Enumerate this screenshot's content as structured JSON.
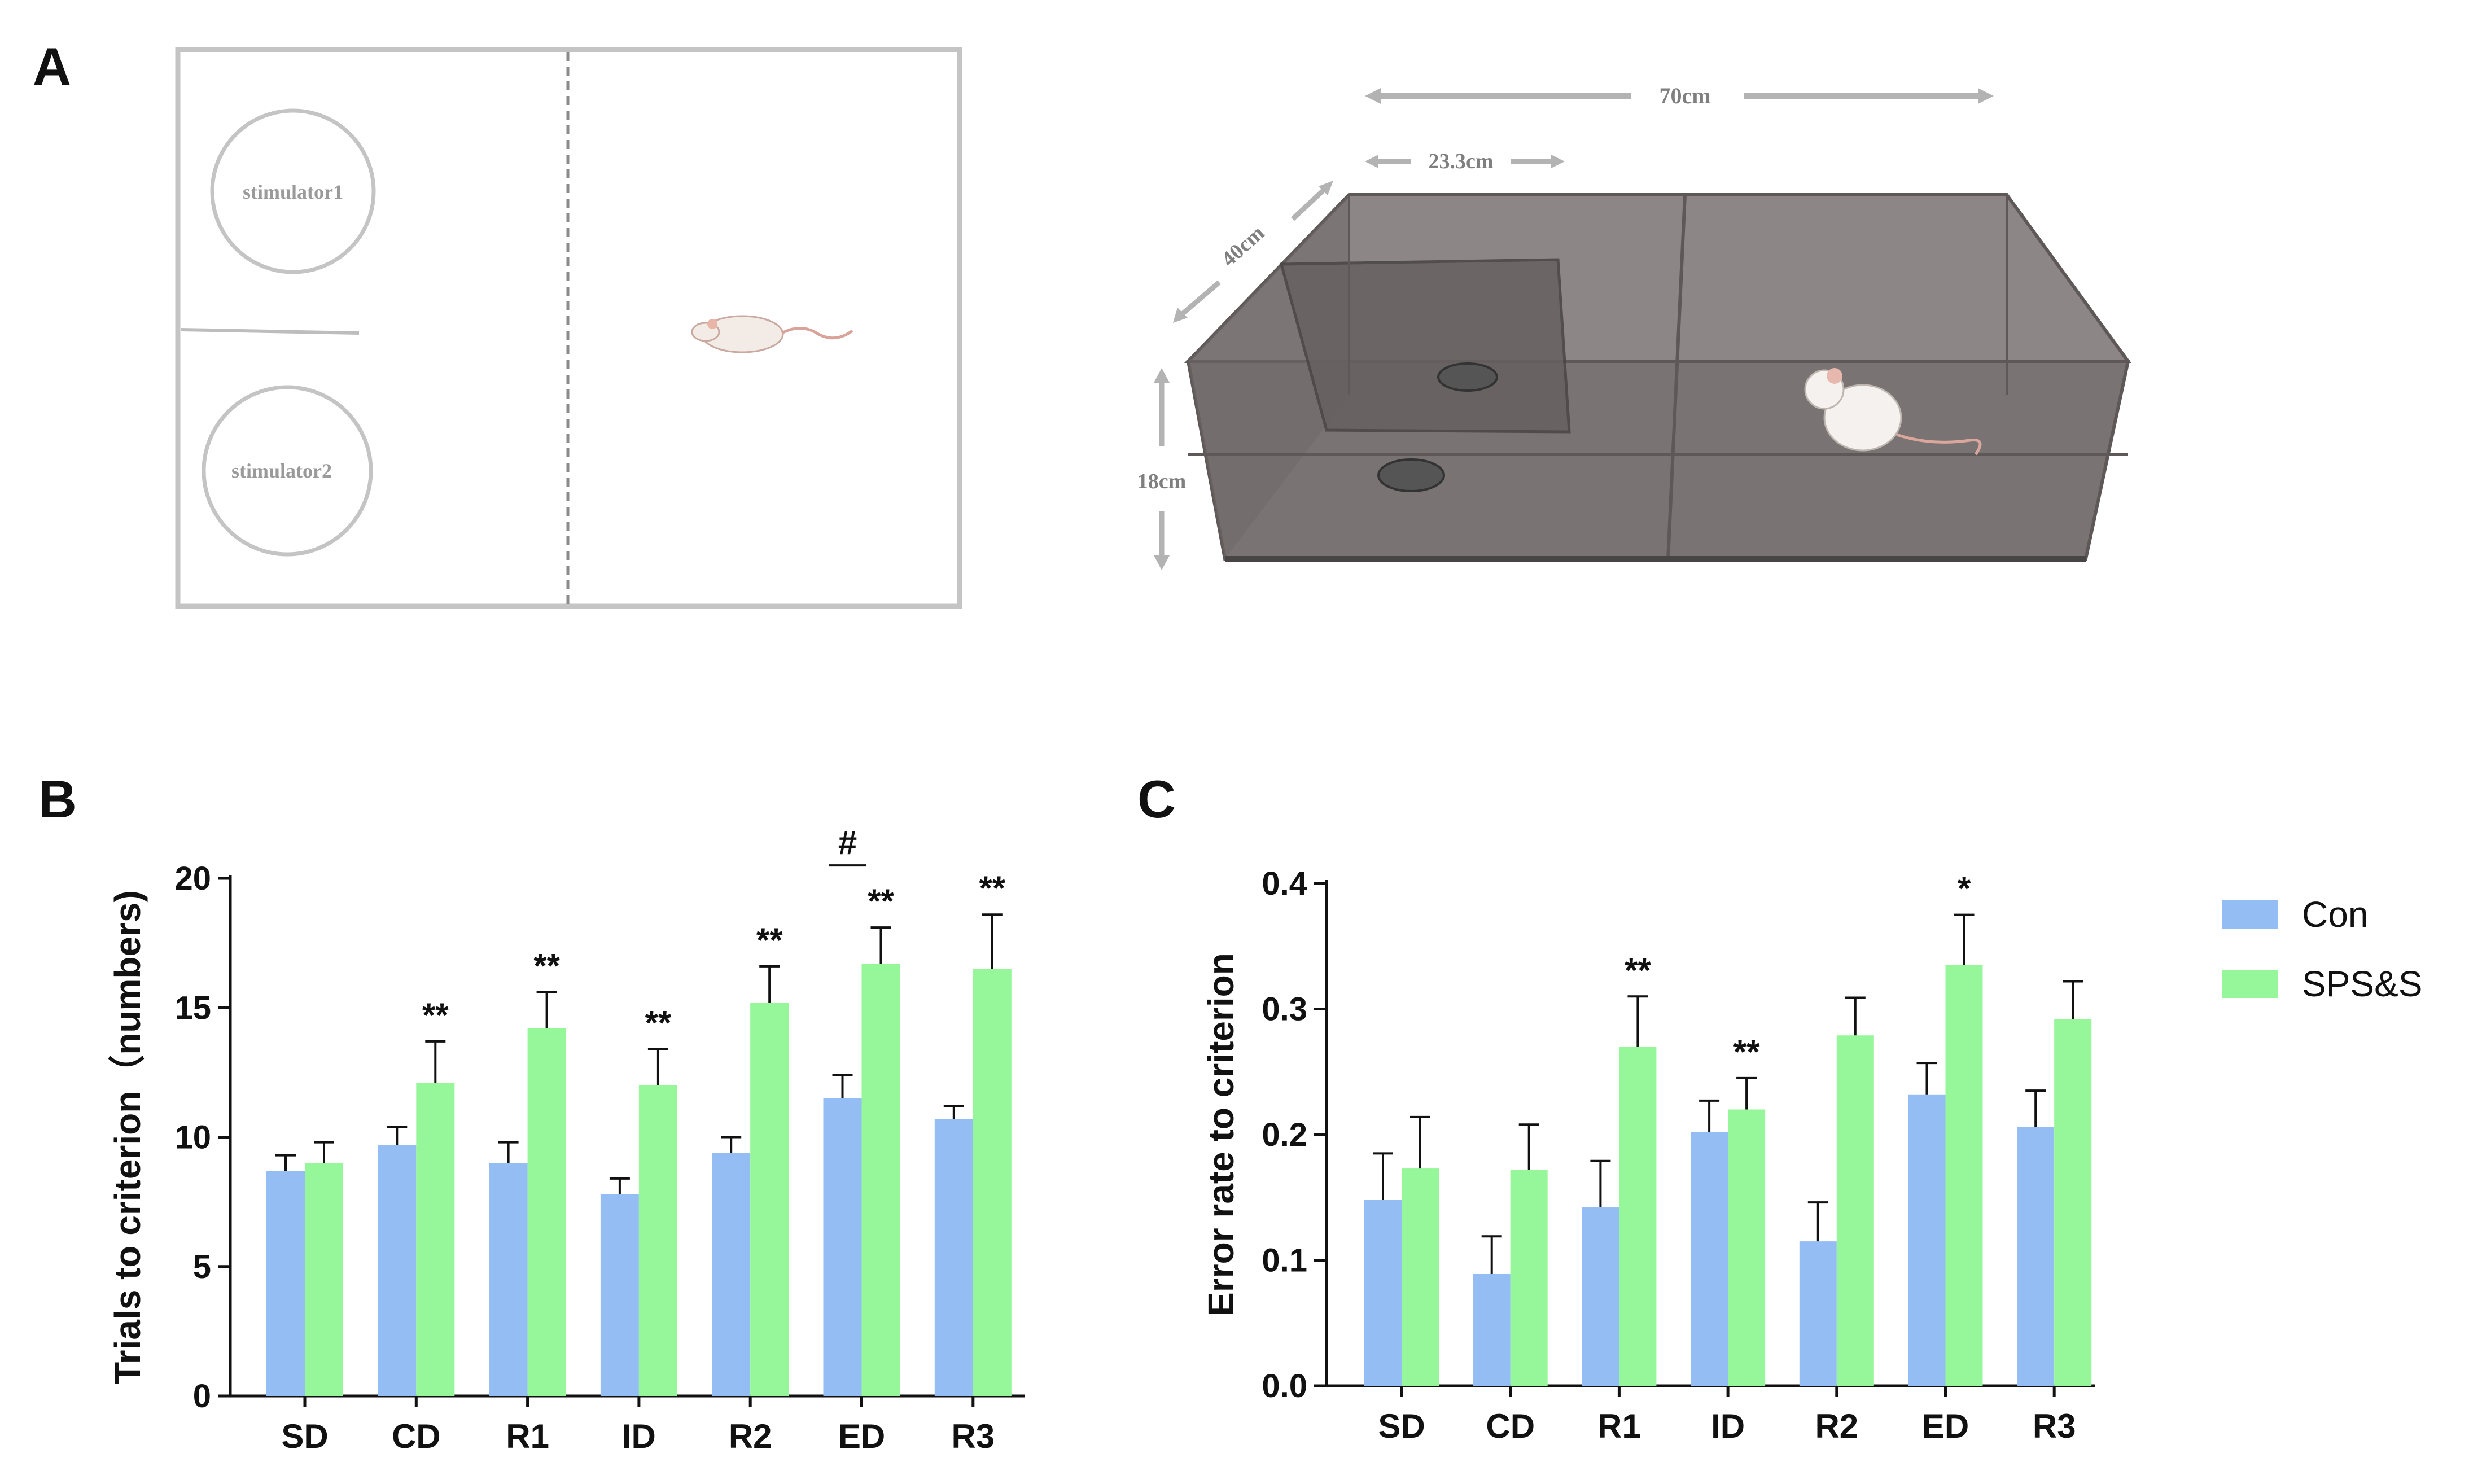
{
  "panel_labels": {
    "a": "A",
    "b": "B",
    "c": "C"
  },
  "diagram": {
    "stimulator1": "stimulator1",
    "stimulator2": "stimulator2",
    "dim_length": "70cm",
    "dim_compartment": "23.3cm",
    "dim_depth": "40cm",
    "dim_height": "18cm"
  },
  "colors": {
    "con": "#93bdf3",
    "sps": "#96f79a",
    "axis": "#111111",
    "box": "#bdbdbd"
  },
  "legend": {
    "con": "Con",
    "sps": "SPS&S"
  },
  "chart_data": [
    {
      "type": "bar",
      "panel": "B",
      "title": "",
      "xlabel": "",
      "ylabel": "Trials to criterion（numbers)",
      "ylim": [
        0,
        20
      ],
      "yticks": [
        "0",
        "5",
        "10",
        "15",
        "20"
      ],
      "categories": [
        "SD",
        "CD",
        "R1",
        "ID",
        "R2",
        "ED",
        "R3"
      ],
      "series": [
        {
          "name": "Con",
          "values": [
            8.7,
            9.7,
            9.0,
            7.8,
            9.4,
            11.5,
            10.7
          ],
          "errors": [
            0.6,
            0.7,
            0.8,
            0.6,
            0.6,
            0.9,
            0.5
          ]
        },
        {
          "name": "SPS&S",
          "values": [
            9.0,
            12.1,
            14.2,
            12.0,
            15.2,
            16.7,
            16.5
          ],
          "errors": [
            0.8,
            1.6,
            1.4,
            1.4,
            1.4,
            1.4,
            2.1
          ]
        }
      ],
      "annotations": [
        "",
        "**",
        "**",
        "**",
        "**",
        "**",
        "**"
      ],
      "extra_annotation": {
        "category": "ED",
        "text": "#"
      }
    },
    {
      "type": "bar",
      "panel": "C",
      "title": "",
      "xlabel": "",
      "ylabel": "Error rate to criterion",
      "ylim": [
        0,
        0.4
      ],
      "yticks": [
        "0.0",
        "0.1",
        "0.2",
        "0.3",
        "0.4"
      ],
      "categories": [
        "SD",
        "CD",
        "R1",
        "ID",
        "R2",
        "ED",
        "R3"
      ],
      "series": [
        {
          "name": "Con",
          "values": [
            0.148,
            0.089,
            0.142,
            0.202,
            0.115,
            0.232,
            0.206
          ],
          "errors": [
            0.037,
            0.03,
            0.037,
            0.025,
            0.031,
            0.025,
            0.029
          ]
        },
        {
          "name": "SPS&S",
          "values": [
            0.173,
            0.172,
            0.27,
            0.22,
            0.279,
            0.335,
            0.292
          ],
          "errors": [
            0.041,
            0.036,
            0.04,
            0.025,
            0.03,
            0.04,
            0.03
          ]
        }
      ],
      "annotations": [
        "",
        "",
        "**",
        "**",
        "",
        "*",
        ""
      ]
    }
  ]
}
